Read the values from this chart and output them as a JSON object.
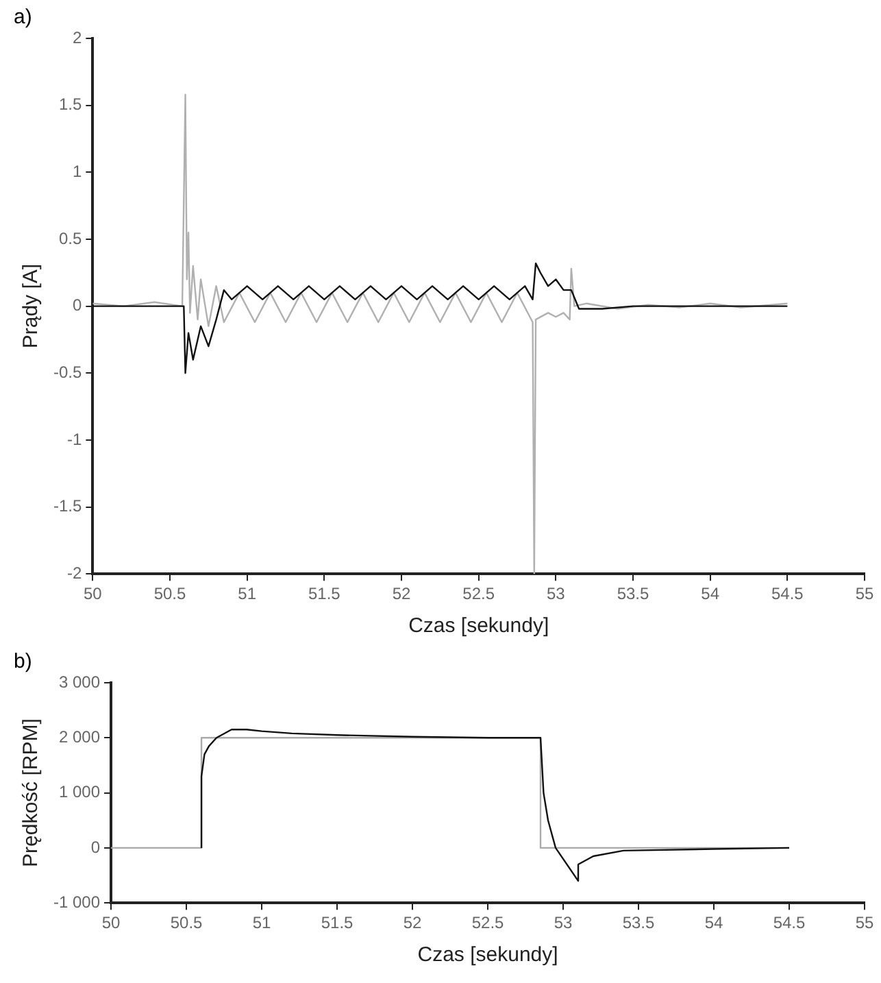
{
  "chart_data": [
    {
      "type": "line",
      "title": "a)",
      "xlabel": "Czas [sekundy]",
      "ylabel": "Prądy [A]",
      "xlim": [
        50,
        55
      ],
      "xticks": [
        50,
        50.5,
        51,
        51.5,
        52,
        52.5,
        53,
        53.5,
        54,
        54.5,
        55
      ],
      "ylim": [
        -2,
        2
      ],
      "yticks": [
        -2,
        -1.5,
        -1,
        -0.5,
        0,
        0.5,
        1,
        1.5,
        2
      ],
      "grid": false,
      "legend": false,
      "marker": "none",
      "series": [
        {
          "color": "#111111",
          "x": [
            50,
            50.59,
            50.6,
            50.62,
            50.65,
            50.7,
            50.75,
            50.8,
            50.85,
            50.9,
            51,
            51.1,
            51.2,
            51.3,
            51.4,
            51.5,
            51.6,
            51.7,
            51.8,
            51.9,
            52,
            52.1,
            52.2,
            52.3,
            52.4,
            52.5,
            52.6,
            52.7,
            52.8,
            52.85,
            52.87,
            52.9,
            52.95,
            53,
            53.05,
            53.1,
            53.15,
            53.3,
            53.5,
            54,
            54.5
          ],
          "values": [
            0,
            0,
            -0.5,
            -0.2,
            -0.4,
            -0.15,
            -0.3,
            -0.1,
            0.12,
            0.05,
            0.15,
            0.05,
            0.15,
            0.05,
            0.15,
            0.05,
            0.15,
            0.05,
            0.15,
            0.05,
            0.15,
            0.05,
            0.15,
            0.05,
            0.15,
            0.05,
            0.15,
            0.05,
            0.15,
            0.05,
            0.32,
            0.25,
            0.15,
            0.2,
            0.12,
            0.12,
            -0.02,
            -0.02,
            0,
            0,
            0
          ]
        },
        {
          "color": "#b0b0b0",
          "x": [
            50,
            50.2,
            50.4,
            50.58,
            50.6,
            50.61,
            50.62,
            50.63,
            50.65,
            50.68,
            50.7,
            50.75,
            50.8,
            50.85,
            50.95,
            51.05,
            51.15,
            51.25,
            51.35,
            51.45,
            51.55,
            51.65,
            51.75,
            51.85,
            51.95,
            52.05,
            52.15,
            52.25,
            52.35,
            52.45,
            52.55,
            52.65,
            52.75,
            52.85,
            52.86,
            52.87,
            52.95,
            53,
            53.05,
            53.09,
            53.1,
            53.12,
            53.2,
            53.4,
            53.6,
            53.8,
            54,
            54.2,
            54.5
          ],
          "values": [
            0.02,
            0,
            0.03,
            0,
            1.58,
            0.2,
            0.55,
            -0.05,
            0.3,
            -0.1,
            0.2,
            -0.15,
            0.15,
            -0.12,
            0.1,
            -0.12,
            0.1,
            -0.12,
            0.1,
            -0.12,
            0.1,
            -0.12,
            0.1,
            -0.12,
            0.1,
            -0.12,
            0.1,
            -0.12,
            0.1,
            -0.12,
            0.1,
            -0.12,
            0.1,
            -0.12,
            -2,
            -0.1,
            -0.05,
            -0.08,
            -0.05,
            -0.1,
            0.28,
            0,
            0.02,
            -0.02,
            0.01,
            -0.01,
            0.02,
            -0.01,
            0.02
          ]
        }
      ]
    },
    {
      "type": "line",
      "title": "b)",
      "xlabel": "Czas [sekundy]",
      "ylabel": "Prędkość [RPM]",
      "xlim": [
        50,
        55
      ],
      "xticks": [
        50,
        50.5,
        51,
        51.5,
        52,
        52.5,
        53,
        53.5,
        54,
        54.5,
        55
      ],
      "ylim": [
        -1000,
        3000
      ],
      "yticks": [
        {
          "value": -1000,
          "label": "-1 000"
        },
        0,
        {
          "value": 1000,
          "label": "1 000"
        },
        {
          "value": 2000,
          "label": "2 000"
        },
        {
          "value": 3000,
          "label": "3 000"
        }
      ],
      "grid": false,
      "legend": false,
      "marker": "none",
      "series": [
        {
          "color": "#111111",
          "x": [
            50.6,
            50.6,
            50.62,
            50.65,
            50.7,
            50.8,
            50.9,
            51,
            51.2,
            51.5,
            52,
            52.5,
            52.85,
            52.87,
            52.9,
            52.95,
            53.1,
            53.1,
            53.2,
            53.4,
            54,
            54.5
          ],
          "values": [
            0,
            1300,
            1700,
            1850,
            2000,
            2150,
            2150,
            2120,
            2080,
            2050,
            2020,
            2000,
            2000,
            1000,
            500,
            0,
            -600,
            -300,
            -150,
            -50,
            -20,
            0
          ]
        },
        {
          "color": "#aaaaaa",
          "x": [
            50,
            50.6,
            50.6,
            52.85,
            52.85,
            54.5
          ],
          "values": [
            0,
            0,
            2000,
            2000,
            0,
            0
          ]
        }
      ]
    }
  ]
}
